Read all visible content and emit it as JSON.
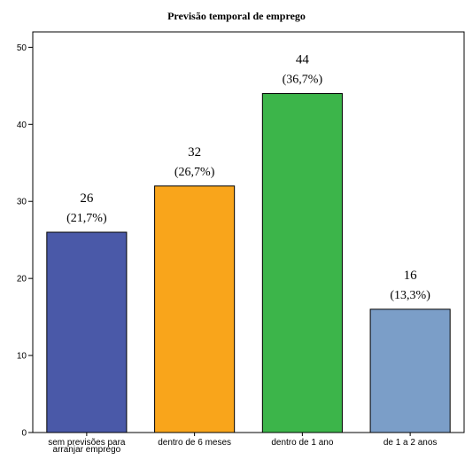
{
  "chart_data": {
    "type": "bar",
    "title": "Previsão temporal de emprego",
    "xlabel": "",
    "ylabel": "",
    "categories": [
      [
        "sem previsões para",
        "arranjar emprego"
      ],
      [
        "dentro de 6 meses"
      ],
      [
        "dentro de 1 ano"
      ],
      [
        "de 1 a 2 anos"
      ]
    ],
    "values": [
      26,
      32,
      44,
      16
    ],
    "value_labels": [
      "26",
      "32",
      "44",
      "16"
    ],
    "percent_labels": [
      "(21,7%)",
      "(26,7%)",
      "(36,7%)",
      "(13,3%)"
    ],
    "colors": [
      "#4a59a8",
      "#f9a51b",
      "#3cb54a",
      "#7b9ec8"
    ],
    "ylim": [
      0,
      52
    ],
    "yticks": [
      0,
      10,
      20,
      30,
      40,
      50
    ],
    "grid": false
  }
}
